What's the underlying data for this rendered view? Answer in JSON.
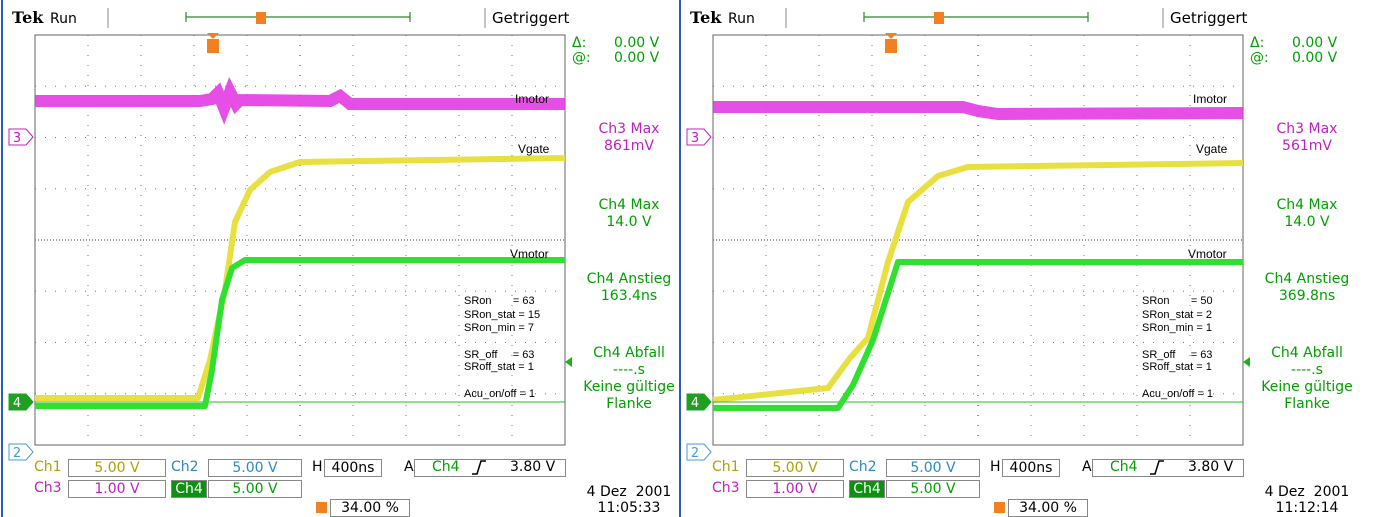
{
  "scopes": [
    {
      "header": {
        "brand": "Tek",
        "state": "Run",
        "trigger_status": "Getriggert"
      },
      "cursor": {
        "delta": "Δ:",
        "delta_value": "0.00 V",
        "at": "@:",
        "at_value": "0.00 V"
      },
      "trace_labels": [
        "Imotor",
        "Vgate",
        "Vmotor"
      ],
      "channel_markers": [
        "3",
        "4",
        "2"
      ],
      "measurements": [
        {
          "label": "Ch3 Max",
          "value": "861mV"
        },
        {
          "label": "Ch4 Max",
          "value": "14.0 V"
        },
        {
          "label": "Ch4 Anstieg",
          "value": "163.4ns"
        },
        {
          "label": "Ch4 Abfall",
          "value": "‐‐‐‐.s"
        },
        {
          "label": "Keine gültige Flanke",
          "value": null
        }
      ],
      "annotations": [
        "SRon       = 63",
        "SRon_stat = 15",
        "SRon_min = 7",
        "SR_off     = 63",
        "SRoff_stat = 1",
        "Acu_on/off = 1"
      ],
      "status": {
        "ch1": "Ch1",
        "ch1_scale": "5.00 V",
        "ch2": "Ch2",
        "ch2_scale": "5.00 V",
        "timebase_label": "H",
        "timebase": "400ns",
        "trigger_mode": "A",
        "trigger_source": "Ch4",
        "trigger_level": "3.80 V",
        "ch3": "Ch3",
        "ch3_scale": "1.00 V",
        "ch4": "Ch4",
        "ch4_scale": "5.00 V",
        "trigger_position": "34.00 %"
      },
      "date": "4 Dez  2001",
      "time": "11:05:33"
    },
    {
      "header": {
        "brand": "Tek",
        "state": "Run",
        "trigger_status": "Getriggert"
      },
      "cursor": {
        "delta": "Δ:",
        "delta_value": "0.00 V",
        "at": "@:",
        "at_value": "0.00 V"
      },
      "trace_labels": [
        "Imotor",
        "Vgate",
        "Vmotor"
      ],
      "channel_markers": [
        "3",
        "4",
        "2"
      ],
      "measurements": [
        {
          "label": "Ch3 Max",
          "value": "561mV"
        },
        {
          "label": "Ch4 Max",
          "value": "14.0 V"
        },
        {
          "label": "Ch4 Anstieg",
          "value": "369.8ns"
        },
        {
          "label": "Ch4 Abfall",
          "value": "‐‐‐‐.s"
        },
        {
          "label": "Keine gültige Flanke",
          "value": null
        }
      ],
      "annotations": [
        "SRon       = 50",
        "SRon_stat = 2",
        "SRon_min = 1",
        "SR_off     = 63",
        "SRoff_stat = 1",
        "Acu_on/off = 1"
      ],
      "status": {
        "ch1": "Ch1",
        "ch1_scale": "5.00 V",
        "ch2": "Ch2",
        "ch2_scale": "5.00 V",
        "timebase_label": "H",
        "timebase": "400ns",
        "trigger_mode": "A",
        "trigger_source": "Ch4",
        "trigger_level": "3.80 V",
        "ch3": "Ch3",
        "ch3_scale": "1.00 V",
        "ch4": "Ch4",
        "ch4_scale": "5.00 V",
        "trigger_position": "34.00 %"
      },
      "date": "4 Dez  2001",
      "time": "11:12:14"
    }
  ]
}
